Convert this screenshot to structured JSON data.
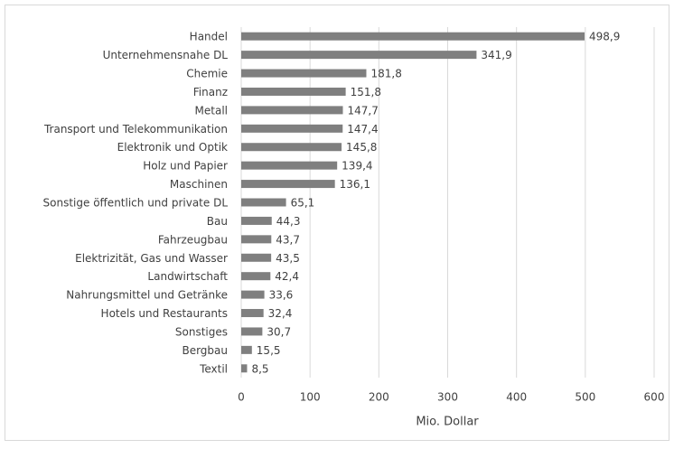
{
  "chart_data": {
    "type": "bar",
    "orientation": "horizontal",
    "x_label": "Mio. Dollar",
    "categories": [
      "Handel",
      "Unternehmensnahe DL",
      "Chemie",
      "Finanz",
      "Metall",
      "Transport und Telekommunikation",
      "Elektronik und Optik",
      "Holz und Papier",
      "Maschinen",
      "Sonstige öffentlich und private DL",
      "Bau",
      "Fahrzeugbau",
      "Elektrizität, Gas und Wasser",
      "Landwirtschaft",
      "Nahrungsmittel und Getränke",
      "Hotels und Restaurants",
      "Sonstiges",
      "Bergbau",
      "Textil"
    ],
    "values": [
      498.9,
      341.9,
      181.8,
      151.8,
      147.7,
      147.4,
      145.8,
      139.4,
      136.1,
      65.1,
      44.3,
      43.7,
      43.5,
      42.4,
      33.6,
      32.4,
      30.7,
      15.5,
      8.5
    ],
    "value_labels": [
      "498,9",
      "341,9",
      "181,8",
      "151,8",
      "147,7",
      "147,4",
      "145,8",
      "139,4",
      "136,1",
      "65,1",
      "44,3",
      "43,7",
      "43,5",
      "42,4",
      "33,6",
      "32,4",
      "30,7",
      "15,5",
      "8,5"
    ],
    "color": "#7f7f7f",
    "xlim": [
      0,
      600
    ],
    "xticks": [
      0,
      100,
      200,
      300,
      400,
      500,
      600
    ],
    "grid": true
  }
}
